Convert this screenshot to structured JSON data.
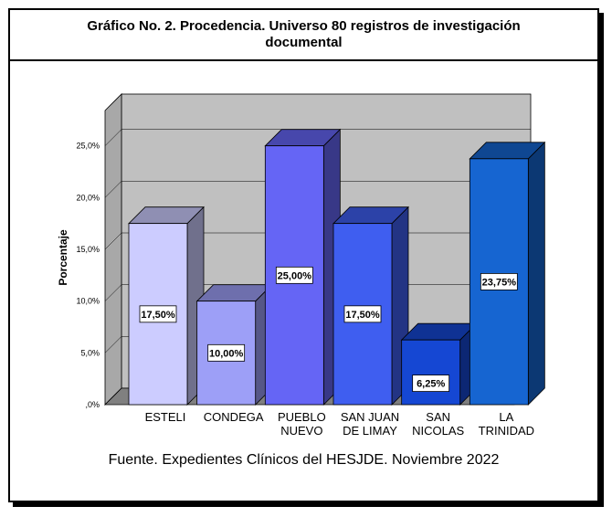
{
  "chart_data": {
    "type": "bar",
    "title": "Gráfico No. 2. Procedencia. Universo 80 registros de investigación documental",
    "ylabel": "Porcentaje",
    "xlabel": "",
    "categories": [
      [
        "ESTELI"
      ],
      [
        "CONDEGA"
      ],
      [
        "PUEBLO",
        "NUEVO"
      ],
      [
        "SAN JUAN",
        "DE LIMAY"
      ],
      [
        "SAN",
        "NICOLAS"
      ],
      [
        "LA",
        "TRINIDAD"
      ]
    ],
    "values": [
      17.5,
      10.0,
      25.0,
      17.5,
      6.25,
      23.75
    ],
    "value_labels": [
      "17,50%",
      "10,00%",
      "25,00%",
      "17,50%",
      "6,25%",
      "23,75%"
    ],
    "yticks": [
      ",0%",
      "5,0%",
      "10,0%",
      "15,0%",
      "20,0%",
      "25,0%"
    ],
    "ylim": [
      0,
      30
    ],
    "grid": true,
    "colors": [
      "#ccccff",
      "#9d9ff7",
      "#6565f5",
      "#3f5ef0",
      "#1547d3",
      "#1665d1"
    ],
    "source": "Fuente. Expedientes Clínicos del HESJDE. Noviembre 2022"
  }
}
